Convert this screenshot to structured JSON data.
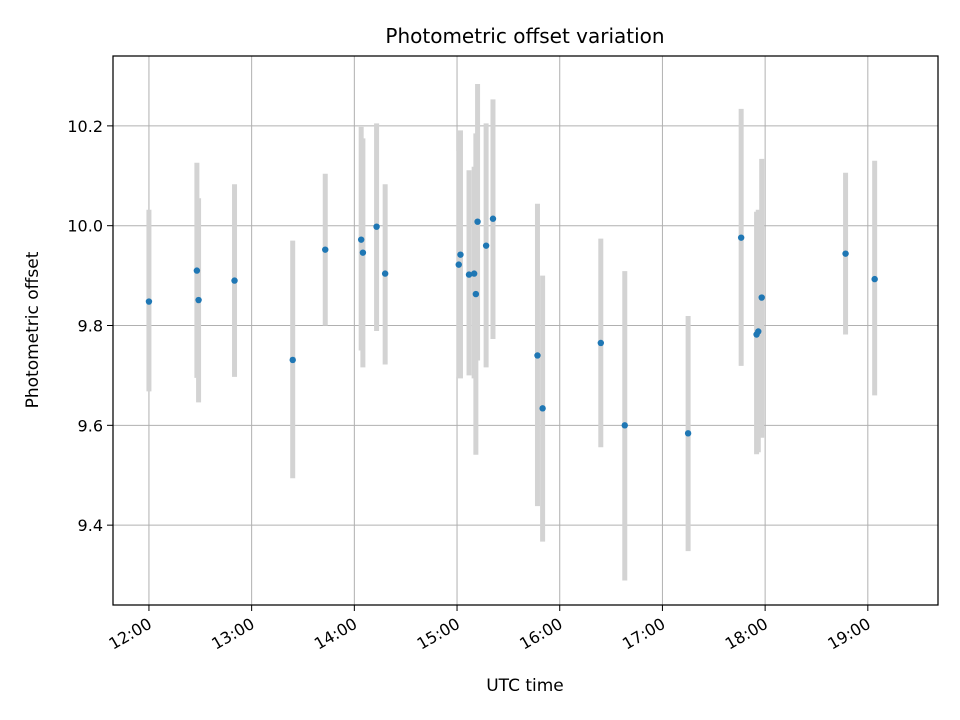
{
  "chart_data": {
    "type": "scatter",
    "title": "Photometric offset variation",
    "xlabel": "UTC time",
    "ylabel": "Photometric offset",
    "x_ticks": [
      "12:00",
      "13:00",
      "14:00",
      "15:00",
      "16:00",
      "17:00",
      "18:00",
      "19:00"
    ],
    "y_ticks": [
      "9.4",
      "9.6",
      "9.8",
      "10.0",
      "10.2"
    ],
    "xlim": [
      "11:39",
      "19:41"
    ],
    "ylim": [
      9.24,
      10.34
    ],
    "grid": true,
    "colors": {
      "point": "#1f77b4",
      "errorbar": "#d3d3d3",
      "grid": "#b0b0b0"
    },
    "points": [
      {
        "x": "12:00",
        "y": 9.848,
        "ylow": 9.668,
        "yhigh": 10.032
      },
      {
        "x": "12:28",
        "y": 9.91,
        "ylow": 9.695,
        "yhigh": 10.126
      },
      {
        "x": "12:29",
        "y": 9.851,
        "ylow": 9.646,
        "yhigh": 10.055
      },
      {
        "x": "12:50",
        "y": 9.89,
        "ylow": 9.697,
        "yhigh": 10.083
      },
      {
        "x": "13:24",
        "y": 9.731,
        "ylow": 9.494,
        "yhigh": 9.97
      },
      {
        "x": "13:43",
        "y": 9.952,
        "ylow": 9.8,
        "yhigh": 10.104
      },
      {
        "x": "14:04",
        "y": 9.972,
        "ylow": 9.75,
        "yhigh": 10.198
      },
      {
        "x": "14:05",
        "y": 9.946,
        "ylow": 9.716,
        "yhigh": 10.175
      },
      {
        "x": "14:13",
        "y": 9.998,
        "ylow": 9.789,
        "yhigh": 10.205
      },
      {
        "x": "14:18",
        "y": 9.904,
        "ylow": 9.722,
        "yhigh": 10.083
      },
      {
        "x": "15:01",
        "y": 9.922,
        "ylow": 9.697,
        "yhigh": 10.15
      },
      {
        "x": "15:02",
        "y": 9.942,
        "ylow": 9.694,
        "yhigh": 10.191
      },
      {
        "x": "15:07",
        "y": 9.902,
        "ylow": 9.7,
        "yhigh": 10.111
      },
      {
        "x": "15:10",
        "y": 9.904,
        "ylow": 9.694,
        "yhigh": 10.118
      },
      {
        "x": "15:11",
        "y": 9.863,
        "ylow": 9.541,
        "yhigh": 10.185
      },
      {
        "x": "15:12",
        "y": 10.008,
        "ylow": 9.73,
        "yhigh": 10.284
      },
      {
        "x": "15:17",
        "y": 9.96,
        "ylow": 9.716,
        "yhigh": 10.205
      },
      {
        "x": "15:21",
        "y": 10.014,
        "ylow": 9.773,
        "yhigh": 10.253
      },
      {
        "x": "15:47",
        "y": 9.74,
        "ylow": 9.438,
        "yhigh": 10.044
      },
      {
        "x": "15:50",
        "y": 9.634,
        "ylow": 9.367,
        "yhigh": 9.9
      },
      {
        "x": "16:24",
        "y": 9.765,
        "ylow": 9.556,
        "yhigh": 9.974
      },
      {
        "x": "16:38",
        "y": 9.6,
        "ylow": 9.289,
        "yhigh": 9.909
      },
      {
        "x": "17:15",
        "y": 9.584,
        "ylow": 9.348,
        "yhigh": 9.819
      },
      {
        "x": "17:46",
        "y": 9.976,
        "ylow": 9.719,
        "yhigh": 10.234
      },
      {
        "x": "17:55",
        "y": 9.782,
        "ylow": 9.542,
        "yhigh": 10.028
      },
      {
        "x": "17:56",
        "y": 9.788,
        "ylow": 9.546,
        "yhigh": 10.032
      },
      {
        "x": "17:58",
        "y": 9.856,
        "ylow": 9.575,
        "yhigh": 10.134
      },
      {
        "x": "18:47",
        "y": 9.944,
        "ylow": 9.782,
        "yhigh": 10.106
      },
      {
        "x": "19:04",
        "y": 9.893,
        "ylow": 9.66,
        "yhigh": 10.13
      }
    ]
  }
}
